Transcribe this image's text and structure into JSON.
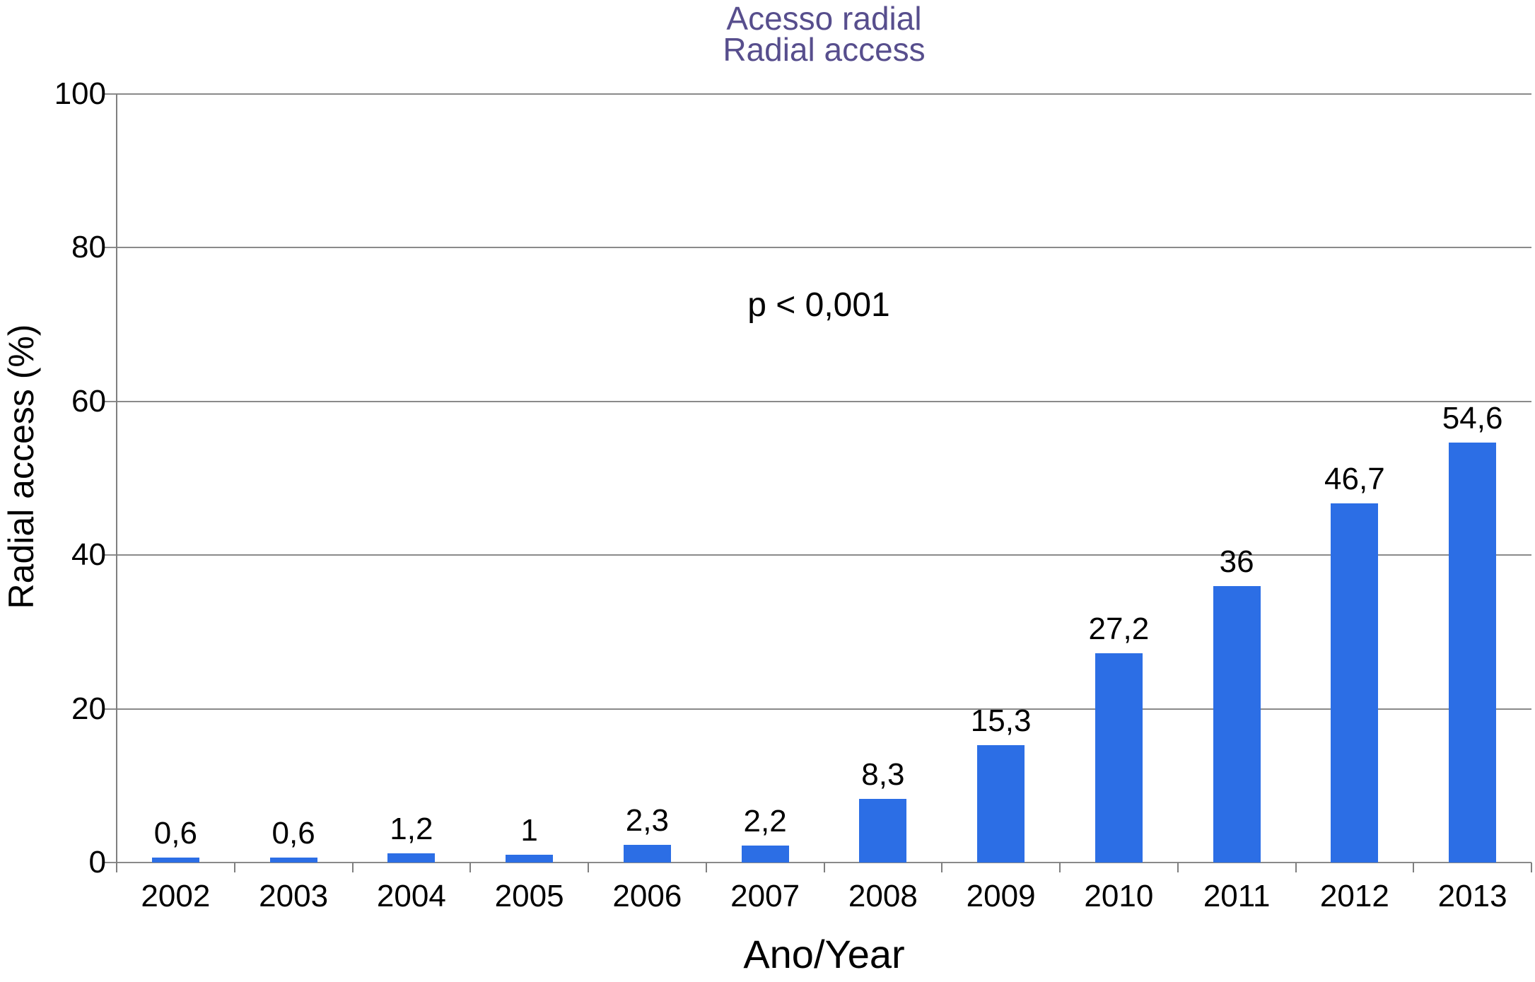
{
  "chart_data": {
    "type": "bar",
    "title_line1": "Acesso radial",
    "title_line2": "Radial access",
    "title_color": "#574e8d",
    "categories": [
      "2002",
      "2003",
      "2004",
      "2005",
      "2006",
      "2007",
      "2008",
      "2009",
      "2010",
      "2011",
      "2012",
      "2013"
    ],
    "values": [
      0.6,
      0.6,
      1.2,
      1,
      2.3,
      2.2,
      8.3,
      15.3,
      27.2,
      36,
      46.7,
      54.6
    ],
    "value_labels": [
      "0,6",
      "0,6",
      "1,2",
      "1",
      "2,3",
      "2,2",
      "8,3",
      "15,3",
      "27,2",
      "36",
      "46,7",
      "54,6"
    ],
    "xlabel": "Ano/Year",
    "ylabel": "Radial access (%)",
    "ylim": [
      0,
      100
    ],
    "yticks": [
      0,
      20,
      40,
      60,
      80,
      100
    ],
    "annotation": "p < 0,001",
    "bar_color": "#2c6ee5",
    "grid": true,
    "gridline_color": "#8a8a8a",
    "axis_color": "#7f7f7f",
    "legend_position": "none"
  }
}
